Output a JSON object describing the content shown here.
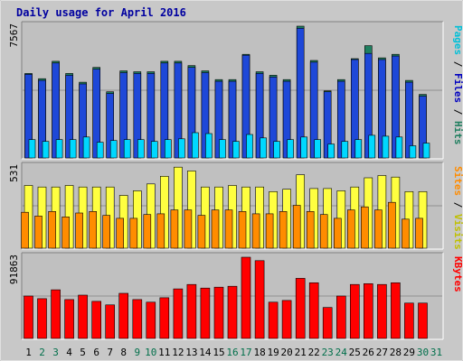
{
  "chart_data": {
    "type": "bar",
    "title": "Daily usage for April 2016",
    "categories": [
      "1",
      "2",
      "3",
      "4",
      "5",
      "6",
      "7",
      "8",
      "9",
      "10",
      "11",
      "12",
      "13",
      "14",
      "15",
      "16",
      "17",
      "18",
      "19",
      "20",
      "21",
      "22",
      "23",
      "24",
      "25",
      "26",
      "27",
      "28",
      "29",
      "30",
      "31"
    ],
    "weekend_days": [
      "2",
      "3",
      "9",
      "10",
      "16",
      "17",
      "23",
      "24",
      "30",
      "31"
    ],
    "colors": {
      "title": "#0000a0",
      "weekday_label": "#000000",
      "weekend_label": "#006f4a",
      "pages": "#2a5cf0",
      "hits": "#1f7f5f",
      "files": "#1e48d8",
      "visits": "#ffff40",
      "sites": "#ff8c00",
      "kbytes": "#ff0000",
      "panel": "#c0c0c0"
    },
    "panels": [
      {
        "id": "top",
        "max_label": "7567",
        "max_value": 7567,
        "legend": [
          {
            "text": "Pages",
            "color": "#00c0d8"
          },
          {
            "text": " / ",
            "color": "#000000"
          },
          {
            "text": "Files",
            "color": "#0000c0"
          },
          {
            "text": " / ",
            "color": "#000000"
          },
          {
            "text": "Hits",
            "color": "#1f7f5f"
          }
        ],
        "series": [
          {
            "key": "hits",
            "color": "#1f7f5f",
            "values": [
              4850,
              4550,
              5550,
              4850,
              4350,
              5200,
              3800,
              5000,
              4950,
              4950,
              5550,
              5550,
              5300,
              5000,
              4500,
              4500,
              5950,
              4950,
              4750,
              4500,
              7567,
              5600,
              3850,
              4500,
              5700,
              6450,
              5750,
              5950,
              4450,
              3650
            ]
          },
          {
            "key": "files",
            "color": "#1e48d8",
            "values": [
              4800,
              4450,
              5450,
              4750,
              4250,
              5100,
              3700,
              4900,
              4850,
              4850,
              5450,
              5450,
              5200,
              4900,
              4400,
              4400,
              5900,
              4850,
              4650,
              4400,
              7450,
              5500,
              3800,
              4400,
              5650,
              6000,
              5650,
              5850,
              4350,
              3550
            ]
          },
          {
            "key": "pages",
            "color": "#00d8ff",
            "values": [
              1050,
              950,
              1050,
              1050,
              1200,
              900,
              1000,
              1050,
              1050,
              950,
              1050,
              1100,
              1450,
              1400,
              1050,
              950,
              1350,
              1150,
              950,
              1050,
              1200,
              1050,
              800,
              950,
              1050,
              1300,
              1250,
              1200,
              700,
              850
            ]
          }
        ]
      },
      {
        "id": "mid",
        "max_label": "531",
        "max_value": 531,
        "legend": [
          {
            "text": "Sites",
            "color": "#ff8c00"
          },
          {
            "text": " / ",
            "color": "#000000"
          },
          {
            "text": "Visits",
            "color": "#c0c000"
          }
        ],
        "series": [
          {
            "key": "visits",
            "color": "#ffff40",
            "values": [
              410,
              400,
              400,
              410,
              400,
              400,
              400,
              345,
              375,
              420,
              470,
              530,
              505,
              400,
              400,
              410,
              400,
              400,
              370,
              385,
              480,
              390,
              390,
              375,
              400,
              460,
              475,
              465,
              370,
              370
            ]
          },
          {
            "key": "sites",
            "color": "#ff8c00",
            "values": [
              235,
              210,
              240,
              205,
              230,
              240,
              215,
              195,
              195,
              220,
              225,
              250,
              250,
              215,
              250,
              250,
              240,
              225,
              225,
              240,
              280,
              240,
              220,
              195,
              250,
              270,
              250,
              300,
              190,
              195
            ]
          }
        ]
      },
      {
        "id": "bot",
        "max_label": "91863",
        "max_value": 91863,
        "legend": [
          {
            "text": "KBytes",
            "color": "#ff0000"
          }
        ],
        "series": [
          {
            "key": "kbytes",
            "color": "#ff0000",
            "values": [
              48000,
              45000,
              55000,
              44000,
              49000,
              42000,
              38000,
              51000,
              44000,
              41000,
              46000,
              56000,
              61000,
              57000,
              58000,
              59000,
              91863,
              88000,
              41000,
              43000,
              68000,
              63000,
              35000,
              48000,
              61000,
              62000,
              61000,
              63000,
              40000,
              40000
            ]
          }
        ]
      }
    ]
  }
}
